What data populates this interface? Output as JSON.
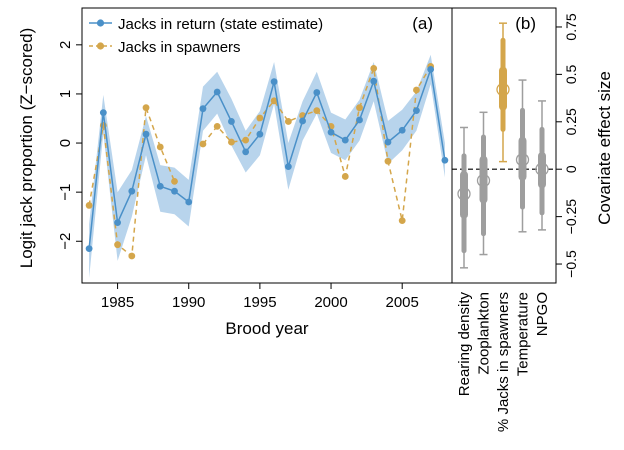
{
  "chart_data": [
    {
      "panel": "(a)",
      "type": "line",
      "xlabel": "Brood year",
      "ylabel": "Logit jack proportion (Z−scored)",
      "xlim": [
        1982.5,
        2008.5
      ],
      "ylim": [
        -2.85,
        2.75
      ],
      "xticks": [
        "1985",
        "1990",
        "1995",
        "2000",
        "2005"
      ],
      "yticks": [
        "−2",
        "−1",
        "0",
        "1",
        "2"
      ],
      "legend_position": "top-left",
      "x": [
        1983,
        1984,
        1985,
        1986,
        1987,
        1988,
        1989,
        1990,
        1991,
        1992,
        1993,
        1994,
        1995,
        1996,
        1997,
        1998,
        1999,
        2000,
        2001,
        2002,
        2003,
        2004,
        2005,
        2006,
        2007,
        2008
      ],
      "series": [
        {
          "name": "Jacks in return (state estimate)",
          "style": "solid-dot",
          "color": "#4a90c8",
          "values": [
            -2.15,
            0.62,
            -1.62,
            -0.98,
            0.18,
            -0.88,
            -0.98,
            -1.2,
            0.7,
            1.04,
            0.44,
            -0.18,
            0.18,
            1.25,
            -0.48,
            0.45,
            1.03,
            0.22,
            0.06,
            0.47,
            1.26,
            0.02,
            0.26,
            0.66,
            1.5,
            -0.35
          ],
          "band_upper": [
            -1.65,
            0.98,
            -1.0,
            -0.55,
            0.55,
            -0.45,
            -0.5,
            -0.75,
            1.15,
            1.45,
            0.9,
            0.25,
            0.65,
            1.65,
            0.0,
            0.85,
            1.45,
            0.62,
            0.48,
            0.88,
            1.65,
            0.45,
            0.68,
            1.05,
            1.8,
            0.0
          ],
          "band_lower": [
            -2.75,
            0.2,
            -2.4,
            -1.5,
            -0.25,
            -1.4,
            -1.45,
            -1.7,
            0.25,
            0.6,
            -0.05,
            -0.6,
            -0.25,
            0.8,
            -0.95,
            0.05,
            0.6,
            -0.2,
            -0.35,
            0.05,
            0.85,
            -0.42,
            -0.15,
            0.25,
            1.2,
            -0.7
          ]
        },
        {
          "name": "Jacks in spawners",
          "style": "dashed-dot",
          "color": "#d4a64b",
          "values": [
            -1.27,
            0.36,
            -2.07,
            -2.3,
            0.72,
            -0.08,
            -0.78,
            null,
            -0.02,
            0.34,
            0.02,
            0.06,
            0.51,
            0.86,
            0.44,
            0.56,
            0.66,
            0.34,
            -0.68,
            0.72,
            1.52,
            -0.37,
            -1.58,
            1.08,
            1.56,
            null
          ]
        }
      ]
    },
    {
      "panel": "(b)",
      "type": "scatter",
      "ylabel": "Covariate effect size",
      "ylim": [
        -0.6,
        0.85
      ],
      "yticks": [
        "−0.5",
        "−0.25",
        "0",
        "0.25",
        "0.5",
        "0.75"
      ],
      "reference_line": 0,
      "categories": [
        "Rearing density",
        "Zooplankton",
        "% Jacks in spawners",
        "Temperature",
        "NPGO"
      ],
      "estimates": [
        -0.13,
        -0.06,
        0.42,
        0.05,
        0.0
      ],
      "interval_50": [
        [
          -0.24,
          -0.03
        ],
        [
          -0.16,
          0.05
        ],
        [
          0.33,
          0.52
        ],
        [
          -0.04,
          0.15
        ],
        [
          -0.08,
          0.07
        ]
      ],
      "interval_95": [
        [
          -0.43,
          0.07
        ],
        [
          -0.34,
          0.17
        ],
        [
          0.21,
          0.68
        ],
        [
          -0.2,
          0.31
        ],
        [
          -0.23,
          0.21
        ]
      ],
      "interval_99": [
        [
          -0.52,
          0.22
        ],
        [
          -0.45,
          0.3
        ],
        [
          0.04,
          0.77
        ],
        [
          -0.33,
          0.47
        ],
        [
          -0.32,
          0.36
        ]
      ],
      "colors": [
        "#9e9e9e",
        "#9e9e9e",
        "#d4a64b",
        "#9e9e9e",
        "#9e9e9e"
      ]
    }
  ]
}
